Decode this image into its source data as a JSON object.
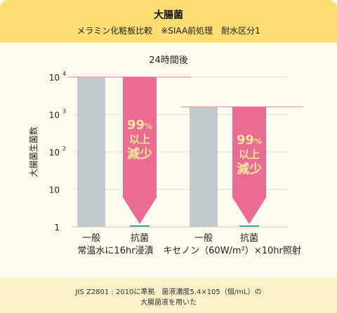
{
  "header": {
    "title": "大腸菌",
    "subtitle": "メラミン化粧板比較　※SIAA前処理　耐水区分1"
  },
  "footer": {
    "line1": "JIS Z2801 : 2010に準拠　菌液濃度5.4×105（個/mL）の",
    "line2": "大腸菌液を用いた"
  },
  "colors": {
    "header_bg": "#fbdd72",
    "footer_bg": "#fcf0c8",
    "background": "#fdfaef",
    "control_bar": "#c3c8ca",
    "antibacterial_bar": "#ea6b93",
    "reference_line": "#f3a2b8",
    "baseline": "#1a9a8a",
    "reduction_text": "#fde79a"
  },
  "chart_data": {
    "type": "bar",
    "title": "24時間後",
    "ylabel": "大腸菌生菌数",
    "yscale": "log",
    "ylim": [
      1,
      10000
    ],
    "yticks": [
      {
        "value": 10000,
        "base": "10",
        "exp": "4"
      },
      {
        "value": 1000,
        "base": "10",
        "exp": "3"
      },
      {
        "value": 100,
        "base": "10",
        "exp": "2"
      },
      {
        "value": 10,
        "base": "10",
        "exp": ""
      },
      {
        "value": 1,
        "base": "1",
        "exp": ""
      }
    ],
    "grid": true,
    "groups": [
      {
        "label": "常温水に16hr浸漬",
        "bars": [
          {
            "label": "一般",
            "value": 10000,
            "kind": "control"
          },
          {
            "label": "抗菌",
            "value": 1,
            "kind": "antibacterial",
            "from": 10000,
            "reduction": {
              "pct": "99",
              "unit": "%",
              "l1": "以上",
              "l2": "減少"
            }
          }
        ]
      },
      {
        "label": "キセノン（60W/m²）×10hr照射",
        "bars": [
          {
            "label": "一般",
            "value": 1600,
            "kind": "control"
          },
          {
            "label": "抗菌",
            "value": 1,
            "kind": "antibacterial",
            "from": 1600,
            "reduction": {
              "pct": "99",
              "unit": "%",
              "l1": "以上",
              "l2": "減少"
            }
          }
        ]
      }
    ]
  }
}
